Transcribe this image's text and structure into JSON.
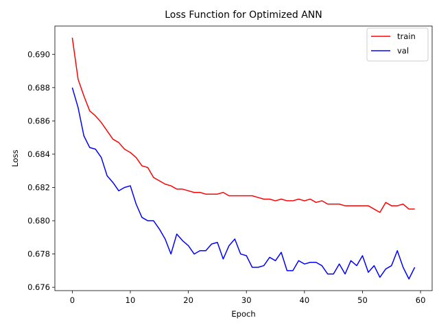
{
  "chart_data": {
    "type": "line",
    "title": "Loss Function for Optimized ANN",
    "xlabel": "Epoch",
    "ylabel": "Loss",
    "xlim": [
      -3,
      62
    ],
    "ylim": [
      0.6758,
      0.6917
    ],
    "xticks": [
      0,
      10,
      20,
      30,
      40,
      50,
      60
    ],
    "yticks": [
      0.676,
      0.678,
      0.68,
      0.682,
      0.684,
      0.686,
      0.688,
      0.69
    ],
    "ytick_labels": [
      "0.676",
      "0.678",
      "0.680",
      "0.682",
      "0.684",
      "0.686",
      "0.688",
      "0.690"
    ],
    "grid": false,
    "legend": "top-right",
    "x": [
      0,
      1,
      2,
      3,
      4,
      5,
      6,
      7,
      8,
      9,
      10,
      11,
      12,
      13,
      14,
      15,
      16,
      17,
      18,
      19,
      20,
      21,
      22,
      23,
      24,
      25,
      26,
      27,
      28,
      29,
      30,
      31,
      32,
      33,
      34,
      35,
      36,
      37,
      38,
      39,
      40,
      41,
      42,
      43,
      44,
      45,
      46,
      47,
      48,
      49,
      50,
      51,
      52,
      53,
      54,
      55,
      56,
      57,
      58,
      59
    ],
    "series": [
      {
        "name": "train",
        "color": "#ff0000",
        "values": [
          0.691,
          0.6885,
          0.6875,
          0.6866,
          0.6863,
          0.6859,
          0.6854,
          0.6849,
          0.6847,
          0.6843,
          0.6841,
          0.6838,
          0.6833,
          0.6832,
          0.6826,
          0.6824,
          0.6822,
          0.6821,
          0.6819,
          0.6819,
          0.6818,
          0.6817,
          0.6817,
          0.6816,
          0.6816,
          0.6816,
          0.6817,
          0.6815,
          0.6815,
          0.6815,
          0.6815,
          0.6815,
          0.6814,
          0.6813,
          0.6813,
          0.6812,
          0.6813,
          0.6812,
          0.6812,
          0.6813,
          0.6812,
          0.6813,
          0.6811,
          0.6812,
          0.681,
          0.681,
          0.681,
          0.6809,
          0.6809,
          0.6809,
          0.6809,
          0.6809,
          0.6807,
          0.6805,
          0.6811,
          0.6809,
          0.6809,
          0.681,
          0.6807,
          0.6807
        ]
      },
      {
        "name": "val",
        "color": "#0000ff",
        "values": [
          0.688,
          0.6868,
          0.6851,
          0.6844,
          0.6843,
          0.6838,
          0.6827,
          0.6823,
          0.6818,
          0.682,
          0.6821,
          0.681,
          0.6802,
          0.68,
          0.68,
          0.6795,
          0.6789,
          0.678,
          0.6792,
          0.6788,
          0.6785,
          0.678,
          0.6782,
          0.6782,
          0.6786,
          0.6787,
          0.6777,
          0.6785,
          0.6789,
          0.678,
          0.6779,
          0.6772,
          0.6772,
          0.6773,
          0.6778,
          0.6776,
          0.6781,
          0.677,
          0.677,
          0.6776,
          0.6774,
          0.6775,
          0.6775,
          0.6773,
          0.6768,
          0.6768,
          0.6774,
          0.6768,
          0.6776,
          0.6773,
          0.6779,
          0.6769,
          0.6773,
          0.6766,
          0.6771,
          0.6773,
          0.6782,
          0.6772,
          0.6765,
          0.6772
        ]
      }
    ]
  }
}
